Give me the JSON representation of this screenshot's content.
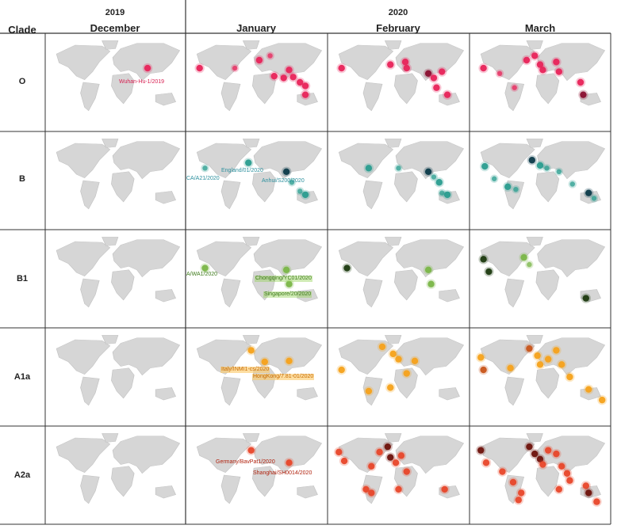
{
  "header": {
    "clade_label": "Clade",
    "years": [
      "2019",
      "2020"
    ],
    "months": [
      "December",
      "January",
      "February",
      "March"
    ]
  },
  "clades": [
    {
      "name": "O",
      "color": "#e8245a",
      "dark": "#8a1030"
    },
    {
      "name": "B",
      "color": "#2a9d8f",
      "dark": "#0d3b4a"
    },
    {
      "name": "B1",
      "color": "#7ab648",
      "dark": "#1d3a10"
    },
    {
      "name": "A1a",
      "color": "#f5a21b",
      "dark": "#c8551a"
    },
    {
      "name": "A2a",
      "color": "#e8472a",
      "dark": "#6e120c"
    }
  ],
  "labels": [
    {
      "clade": 0,
      "month": 0,
      "text": "Wuhan-Hu-1/2019"
    },
    {
      "clade": 1,
      "month": 1,
      "text": "CA/A21/2020"
    },
    {
      "clade": 1,
      "month": 1,
      "text": "England/01/2020"
    },
    {
      "clade": 1,
      "month": 1,
      "text": "Anhui/S200/2020"
    },
    {
      "clade": 2,
      "month": 1,
      "text": "A/WA1/2020"
    },
    {
      "clade": 2,
      "month": 1,
      "text": "Chongqing/YC01/2020"
    },
    {
      "clade": 2,
      "month": 1,
      "text": "Singapore/20/2020"
    },
    {
      "clade": 3,
      "month": 1,
      "text": "Italy/INMI1-cs/2020"
    },
    {
      "clade": 3,
      "month": 1,
      "text": "HongKong/7.81-01/2020"
    },
    {
      "clade": 4,
      "month": 1,
      "text": "Germany/BavPat1/2020"
    },
    {
      "clade": 4,
      "month": 1,
      "text": "Shanghai/SH0014/2020"
    }
  ]
}
